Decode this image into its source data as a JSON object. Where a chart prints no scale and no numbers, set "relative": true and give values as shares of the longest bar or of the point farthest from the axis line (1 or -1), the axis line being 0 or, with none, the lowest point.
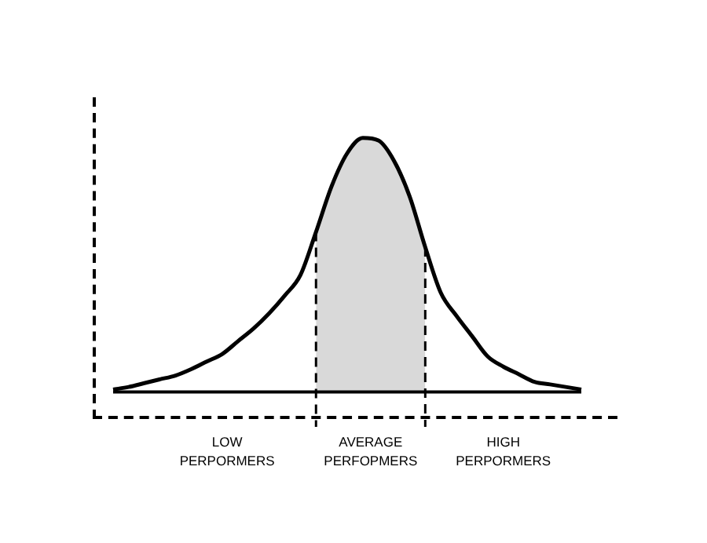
{
  "chart_data": {
    "type": "line",
    "relative": true,
    "categories": [
      null,
      null,
      null,
      null,
      null,
      null,
      null,
      null,
      null,
      null,
      null,
      null,
      null,
      null,
      null,
      null,
      null,
      null,
      null,
      null,
      null,
      null,
      null,
      null,
      null,
      null,
      null,
      null,
      null,
      null,
      null
    ],
    "series": [
      {
        "color": "#000000",
        "values": [
          0.01,
          0.02,
          0.035,
          0.05,
          0.065,
          0.09,
          0.12,
          0.15,
          0.2,
          0.25,
          0.31,
          0.38,
          0.46,
          0.63,
          0.81,
          0.94,
          1,
          0.99,
          0.91,
          0.77,
          0.57,
          0.39,
          0.3,
          0.22,
          0.14,
          0.1,
          0.07,
          0.04,
          0.03,
          0.02,
          0.01
        ]
      },
      {
        "type": "area",
        "color": "#d9d9d9",
        "line_style": "dashed",
        "values": [
          null,
          null,
          null,
          null,
          null,
          null,
          null,
          null,
          null,
          null,
          null,
          null,
          null,
          0.63,
          0.81,
          0.94,
          1,
          0.99,
          0.91,
          0.77,
          0.57,
          null,
          null,
          null,
          null,
          null,
          null,
          null,
          null,
          null,
          null
        ]
      }
    ],
    "legend": false,
    "marker": "none",
    "line_style": "solid",
    "annotations": [
      "LOW PERPORMERS",
      "AVERAGE PERFOPMERS",
      "HIGH PERPORMERS"
    ]
  }
}
